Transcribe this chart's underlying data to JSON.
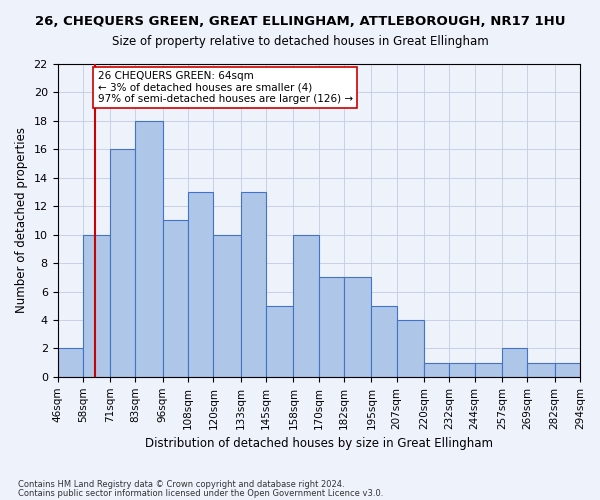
{
  "title1": "26, CHEQUERS GREEN, GREAT ELLINGHAM, ATTLEBOROUGH, NR17 1HU",
  "title2": "Size of property relative to detached houses in Great Ellingham",
  "xlabel": "Distribution of detached houses by size in Great Ellingham",
  "ylabel": "Number of detached properties",
  "bin_labels": [
    "46sqm",
    "58sqm",
    "71sqm",
    "83sqm",
    "96sqm",
    "108sqm",
    "120sqm",
    "133sqm",
    "145sqm",
    "158sqm",
    "170sqm",
    "182sqm",
    "195sqm",
    "207sqm",
    "220sqm",
    "232sqm",
    "244sqm",
    "257sqm",
    "269sqm",
    "282sqm",
    "294sqm"
  ],
  "bin_edges": [
    46,
    58,
    71,
    83,
    96,
    108,
    120,
    133,
    145,
    158,
    170,
    182,
    195,
    207,
    220,
    232,
    244,
    257,
    269,
    282,
    294
  ],
  "bar_values": [
    2,
    10,
    16,
    18,
    11,
    13,
    10,
    13,
    5,
    10,
    7,
    7,
    5,
    4,
    1,
    1,
    1,
    2,
    1,
    1
  ],
  "bar_color": "#aec6e8",
  "bar_edge_color": "#4472c4",
  "vline_x": 64,
  "vline_color": "#cc0000",
  "annotation_text": "26 CHEQUERS GREEN: 64sqm\n← 3% of detached houses are smaller (4)\n97% of semi-detached houses are larger (126) →",
  "annotation_box_color": "#ffffff",
  "annotation_box_edge": "#cc0000",
  "ylim": [
    0,
    22
  ],
  "yticks": [
    0,
    2,
    4,
    6,
    8,
    10,
    12,
    14,
    16,
    18,
    20,
    22
  ],
  "footer1": "Contains HM Land Registry data © Crown copyright and database right 2024.",
  "footer2": "Contains public sector information licensed under the Open Government Licence v3.0.",
  "bg_color": "#eef2fb",
  "grid_color": "#c8d0e8"
}
